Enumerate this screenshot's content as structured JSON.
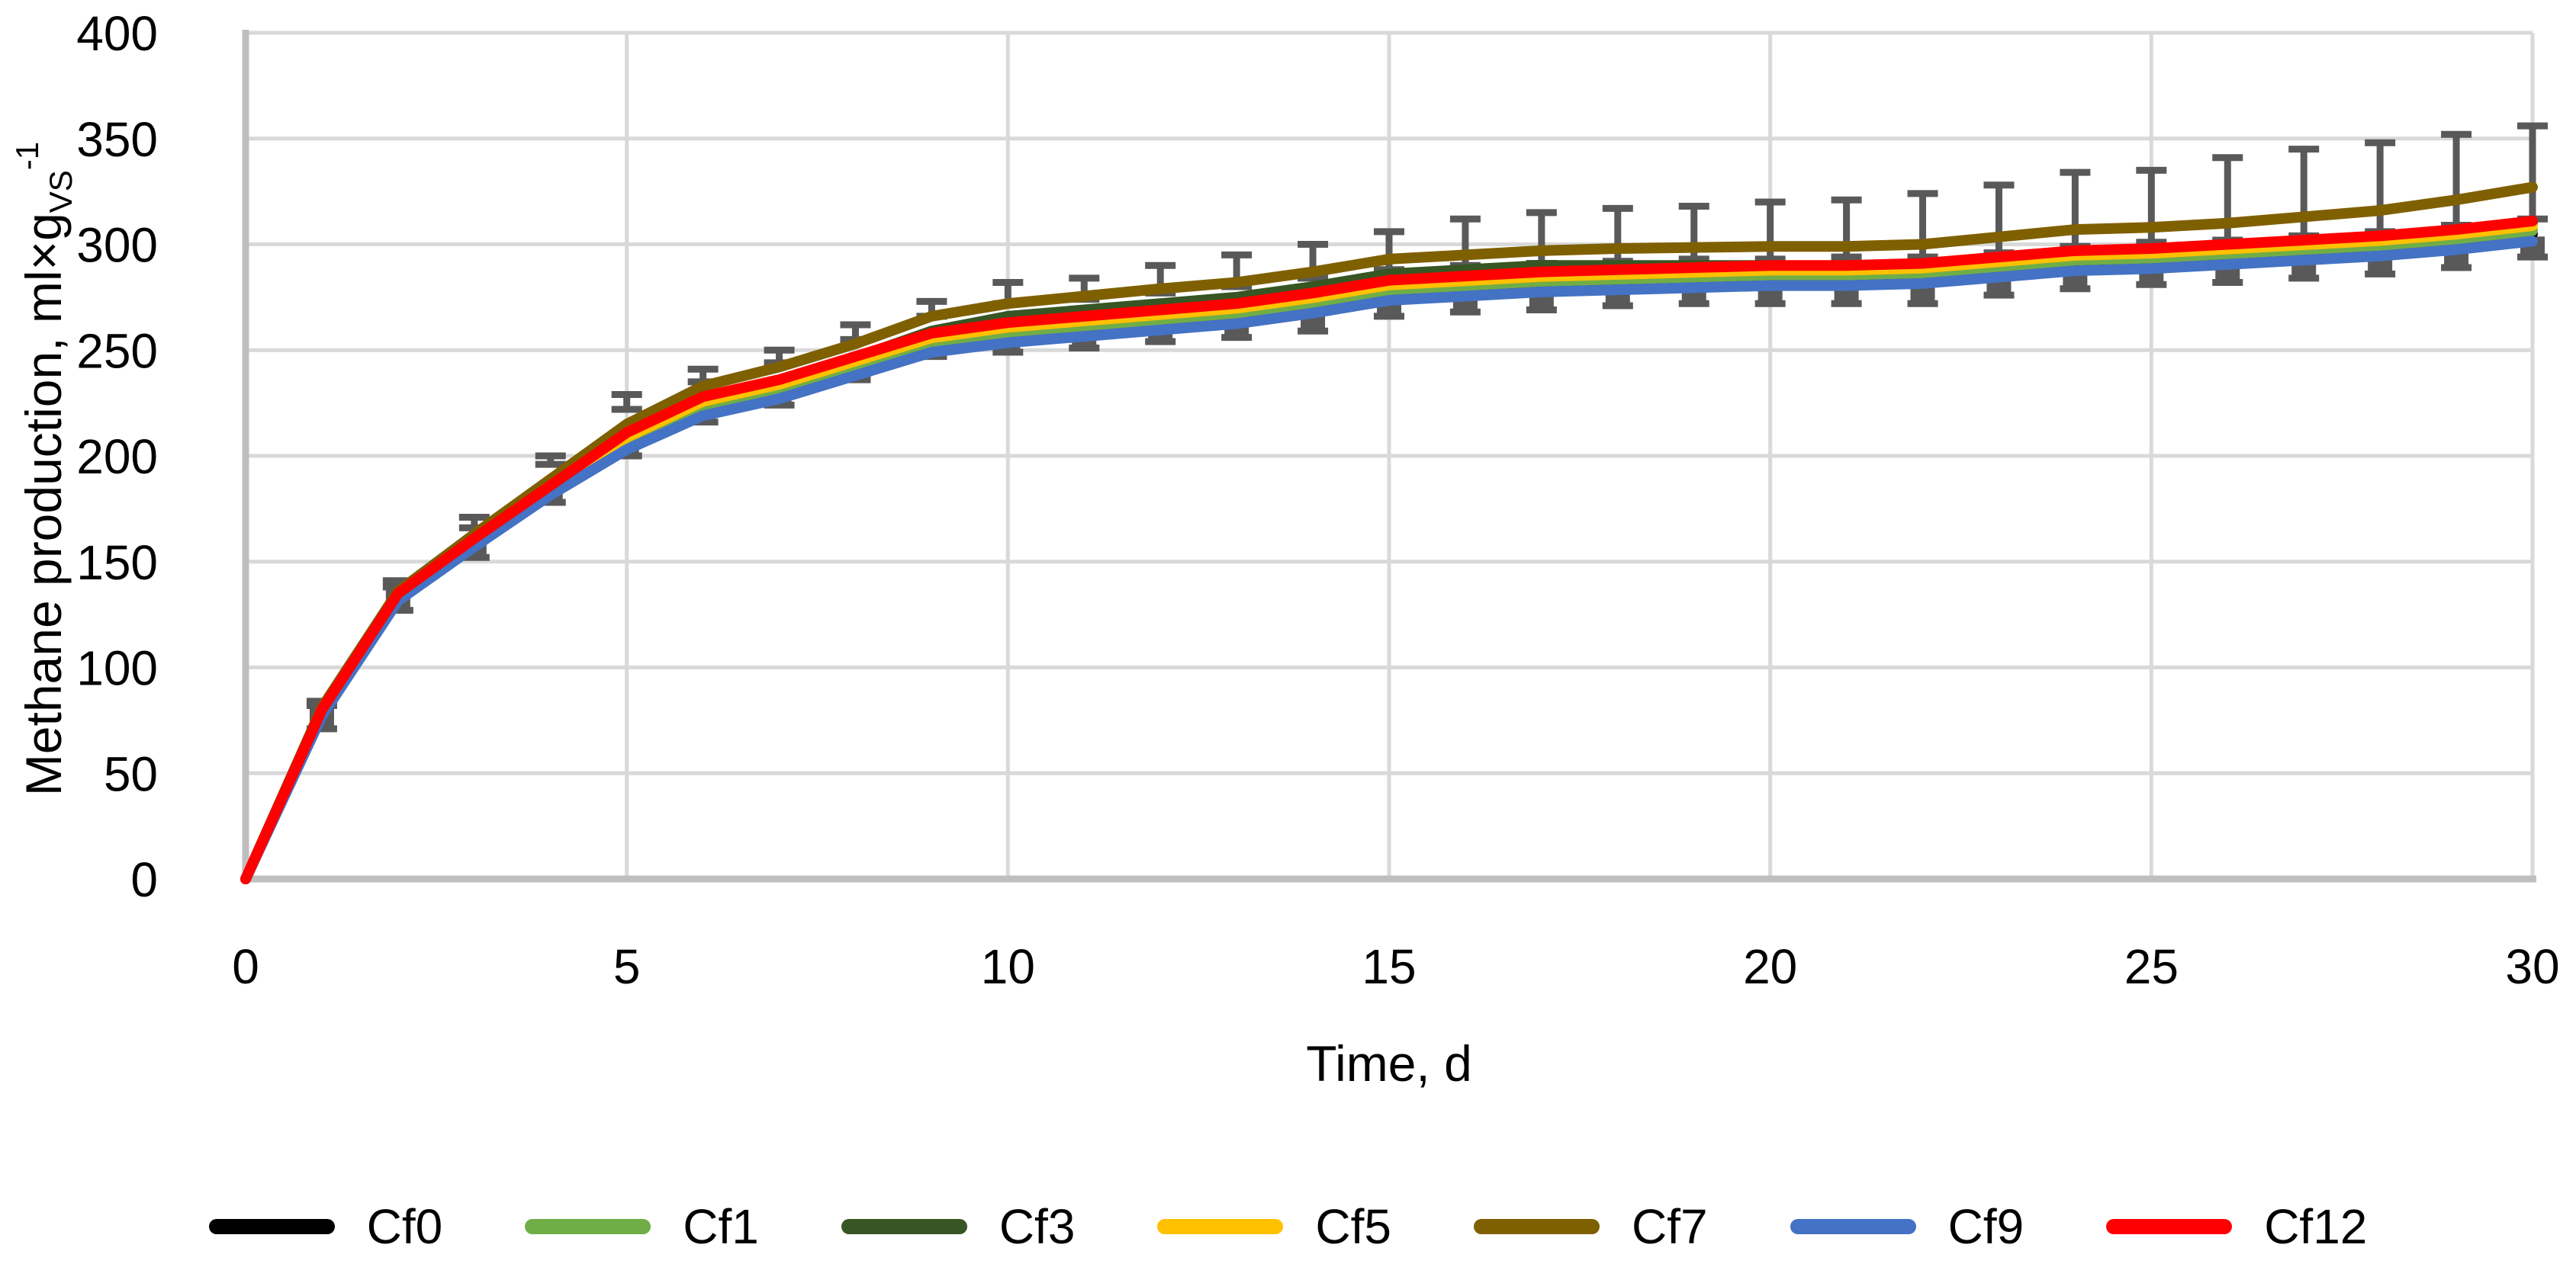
{
  "chart_data": {
    "type": "line",
    "title": "",
    "xlabel": "Time, d",
    "ylabel": {
      "prefix": "Methane production, ml×g",
      "sub": "VS",
      "sup": "-1"
    },
    "xlim": [
      0,
      30
    ],
    "ylim": [
      0,
      400
    ],
    "x_ticks": [
      0,
      5,
      10,
      15,
      20,
      25,
      30
    ],
    "y_ticks": [
      0,
      50,
      100,
      150,
      200,
      250,
      300,
      350,
      400
    ],
    "grid": true,
    "legend_position": "bottom",
    "colors": {
      "gridline": "#D9D9D9",
      "axis": "#BFBFBF",
      "error_bar": "#595959",
      "text": "#000000"
    },
    "days": [
      0,
      1,
      2,
      3,
      4,
      5,
      6,
      7,
      8,
      9,
      10,
      11,
      12,
      13,
      14,
      15,
      16,
      17,
      18,
      19,
      20,
      21,
      22,
      23,
      24,
      25,
      26,
      27,
      28,
      29,
      30
    ],
    "series": [
      {
        "name": "Cf0",
        "color": "#000000",
        "values": [
          0,
          78.2,
          132.4,
          158,
          182.3,
          205,
          222,
          230,
          241,
          252,
          257,
          260,
          263,
          266,
          271,
          277,
          279,
          281,
          282,
          283,
          284,
          284,
          285,
          288,
          291,
          292,
          294,
          296,
          298,
          301,
          305
        ]
      },
      {
        "name": "Cf1",
        "color": "#70AD47",
        "values": [
          0,
          78.5,
          133,
          158.5,
          182.5,
          206.5,
          223.5,
          231.5,
          242.5,
          253.5,
          258.5,
          261.5,
          264.5,
          267.5,
          272.5,
          278.5,
          280.5,
          282.5,
          283.5,
          284.5,
          285.5,
          285.5,
          286.5,
          289.5,
          292.5,
          293.5,
          295.5,
          297.5,
          299.5,
          302.5,
          306.5
        ]
      },
      {
        "name": "Cf3",
        "color": "#375623",
        "values": [
          0,
          78.5,
          133.5,
          159.5,
          184.5,
          209.5,
          227,
          235,
          246.5,
          259,
          266,
          269,
          272,
          275,
          280,
          286,
          288,
          290,
          290,
          290,
          290,
          289,
          290,
          293,
          296,
          297,
          299,
          301,
          303,
          306,
          310
        ]
      },
      {
        "name": "Cf5",
        "color": "#FFC000",
        "values": [
          0,
          79,
          134,
          159.5,
          184,
          208.8,
          225.8,
          233.8,
          244.8,
          255.8,
          260.8,
          263.8,
          266.8,
          269.8,
          274.8,
          280.8,
          282.8,
          284.8,
          285.8,
          286.8,
          287.8,
          287.8,
          288.8,
          291.8,
          294.8,
          295.8,
          297.8,
          299.8,
          301.8,
          304.8,
          308.8
        ]
      },
      {
        "name": "Cf7",
        "color": "#7F6000",
        "values": [
          0,
          81,
          136,
          163,
          189,
          215,
          233,
          242,
          253,
          266,
          272,
          275.5,
          279,
          282,
          287,
          293,
          295,
          297,
          298,
          298.5,
          299,
          299,
          300,
          303.5,
          307,
          308,
          310,
          313,
          316,
          321,
          327
        ]
      },
      {
        "name": "Cf9",
        "color": "#4472C4",
        "values": [
          0,
          77,
          131.5,
          157,
          181.5,
          203,
          219,
          227,
          238,
          249,
          253.5,
          256.5,
          259.5,
          262.5,
          267.5,
          273.5,
          275.5,
          277.5,
          278.5,
          279.5,
          280.5,
          280.5,
          281.5,
          284.5,
          287.5,
          288.5,
          290.5,
          292.5,
          294.5,
          297.5,
          301.5
        ]
      },
      {
        "name": "Cf12",
        "color": "#FF0000",
        "values": [
          0,
          80,
          135,
          161,
          186,
          211,
          228,
          236,
          247,
          258,
          263,
          266,
          269,
          272,
          277,
          283,
          285,
          287,
          288,
          289,
          290,
          290,
          291,
          294,
          297,
          298,
          300,
          302,
          304,
          307,
          311
        ]
      }
    ],
    "error_bars": {
      "color": "#595959",
      "days": [
        1,
        2,
        3,
        4,
        5,
        6,
        7,
        8,
        9,
        10,
        11,
        12,
        13,
        14,
        15,
        16,
        17,
        18,
        19,
        20,
        21,
        22,
        23,
        24,
        25,
        26,
        27,
        28,
        29,
        30
      ],
      "upper": [
        84,
        141,
        171,
        200,
        229,
        241,
        250,
        262,
        273,
        282,
        284,
        290,
        295,
        300,
        306,
        312,
        315,
        317,
        318,
        320,
        321,
        324,
        328,
        334,
        335,
        341,
        345,
        348,
        352,
        356
      ],
      "mid": [
        82,
        138,
        166,
        196,
        222,
        235,
        244,
        255,
        266,
        272,
        274,
        277,
        280,
        284,
        288,
        290,
        291,
        292,
        293,
        293,
        294,
        294,
        296,
        299,
        301,
        302,
        304,
        306,
        309,
        312
      ],
      "mean": [
        76,
        132,
        157,
        183,
        205,
        221,
        229,
        241,
        252,
        254,
        256,
        259,
        261,
        264,
        271,
        273,
        274,
        276,
        277,
        277,
        277,
        277,
        281,
        284,
        286,
        287,
        289,
        291,
        294,
        299
      ],
      "lower": [
        71,
        127,
        152,
        178,
        200,
        216,
        224,
        236,
        247,
        249,
        251,
        254,
        256,
        259,
        266,
        268,
        269,
        271,
        272,
        272,
        272,
        272,
        276,
        279,
        281,
        282,
        284,
        286,
        289,
        294
      ]
    }
  }
}
